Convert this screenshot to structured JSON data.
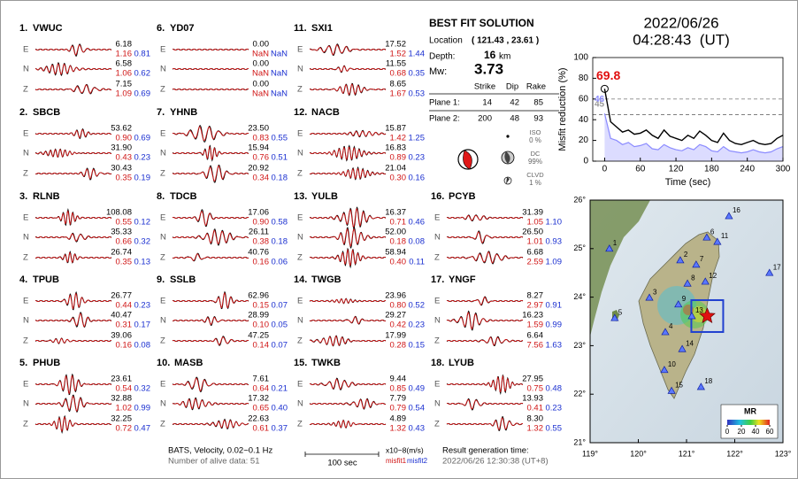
{
  "components": [
    "E",
    "N",
    "Z"
  ],
  "stations": [
    {
      "number": "1.",
      "name": "VWUC",
      "traces": [
        {
          "amp": "6.18",
          "misfit1": "1.16",
          "misfit2": "0.81"
        },
        {
          "amp": "6.58",
          "misfit1": "1.06",
          "misfit2": "0.62"
        },
        {
          "amp": "7.15",
          "misfit1": "1.09",
          "misfit2": "0.69"
        }
      ]
    },
    {
      "number": "2.",
      "name": "SBCB",
      "traces": [
        {
          "amp": "53.62",
          "misfit1": "0.90",
          "misfit2": "0.69"
        },
        {
          "amp": "31.90",
          "misfit1": "0.43",
          "misfit2": "0.23"
        },
        {
          "amp": "30.43",
          "misfit1": "0.35",
          "misfit2": "0.19"
        }
      ]
    },
    {
      "number": "3.",
      "name": "RLNB",
      "traces": [
        {
          "amp": "108.08",
          "misfit1": "0.55",
          "misfit2": "0.12"
        },
        {
          "amp": "35.33",
          "misfit1": "0.66",
          "misfit2": "0.32"
        },
        {
          "amp": "26.74",
          "misfit1": "0.35",
          "misfit2": "0.13"
        }
      ]
    },
    {
      "number": "4.",
      "name": "TPUB",
      "traces": [
        {
          "amp": "26.77",
          "misfit1": "0.44",
          "misfit2": "0.23"
        },
        {
          "amp": "40.47",
          "misfit1": "0.31",
          "misfit2": "0.17"
        },
        {
          "amp": "39.06",
          "misfit1": "0.16",
          "misfit2": "0.08"
        }
      ]
    },
    {
      "number": "5.",
      "name": "PHUB",
      "traces": [
        {
          "amp": "23.61",
          "misfit1": "0.54",
          "misfit2": "0.32"
        },
        {
          "amp": "32.88",
          "misfit1": "1.02",
          "misfit2": "0.99"
        },
        {
          "amp": "32.25",
          "misfit1": "0.72",
          "misfit2": "0.47"
        }
      ]
    },
    {
      "number": "6.",
      "name": "YD07",
      "traces": [
        {
          "amp": "0.00",
          "misfit1": "NaN",
          "misfit2": "NaN"
        },
        {
          "amp": "0.00",
          "misfit1": "NaN",
          "misfit2": "NaN"
        },
        {
          "amp": "0.00",
          "misfit1": "NaN",
          "misfit2": "NaN"
        }
      ]
    },
    {
      "number": "7.",
      "name": "YHNB",
      "traces": [
        {
          "amp": "23.50",
          "misfit1": "0.83",
          "misfit2": "0.55"
        },
        {
          "amp": "15.94",
          "misfit1": "0.76",
          "misfit2": "0.51"
        },
        {
          "amp": "20.92",
          "misfit1": "0.34",
          "misfit2": "0.18"
        }
      ]
    },
    {
      "number": "8.",
      "name": "TDCB",
      "traces": [
        {
          "amp": "17.06",
          "misfit1": "0.90",
          "misfit2": "0.58"
        },
        {
          "amp": "26.11",
          "misfit1": "0.38",
          "misfit2": "0.18"
        },
        {
          "amp": "40.76",
          "misfit1": "0.16",
          "misfit2": "0.06"
        }
      ]
    },
    {
      "number": "9.",
      "name": "SSLB",
      "traces": [
        {
          "amp": "62.96",
          "misfit1": "0.15",
          "misfit2": "0.07"
        },
        {
          "amp": "28.99",
          "misfit1": "0.10",
          "misfit2": "0.05"
        },
        {
          "amp": "47.25",
          "misfit1": "0.14",
          "misfit2": "0.07"
        }
      ]
    },
    {
      "number": "10.",
      "name": "MASB",
      "traces": [
        {
          "amp": "7.61",
          "misfit1": "0.64",
          "misfit2": "0.21"
        },
        {
          "amp": "17.32",
          "misfit1": "0.65",
          "misfit2": "0.40"
        },
        {
          "amp": "22.63",
          "misfit1": "0.61",
          "misfit2": "0.37"
        }
      ]
    },
    {
      "number": "11.",
      "name": "SXI1",
      "traces": [
        {
          "amp": "17.52",
          "misfit1": "1.52",
          "misfit2": "1.44"
        },
        {
          "amp": "11.55",
          "misfit1": "0.68",
          "misfit2": "0.35"
        },
        {
          "amp": "8.65",
          "misfit1": "1.67",
          "misfit2": "0.53"
        }
      ]
    },
    {
      "number": "12.",
      "name": "NACB",
      "traces": [
        {
          "amp": "15.87",
          "misfit1": "1.42",
          "misfit2": "1.25"
        },
        {
          "amp": "16.83",
          "misfit1": "0.89",
          "misfit2": "0.23"
        },
        {
          "amp": "21.04",
          "misfit1": "0.30",
          "misfit2": "0.16"
        }
      ]
    },
    {
      "number": "13.",
      "name": "YULB",
      "traces": [
        {
          "amp": "16.37",
          "misfit1": "0.71",
          "misfit2": "0.46"
        },
        {
          "amp": "52.00",
          "misfit1": "0.18",
          "misfit2": "0.08"
        },
        {
          "amp": "58.94",
          "misfit1": "0.40",
          "misfit2": "0.11"
        }
      ]
    },
    {
      "number": "14.",
      "name": "TWGB",
      "traces": [
        {
          "amp": "23.96",
          "misfit1": "0.80",
          "misfit2": "0.52"
        },
        {
          "amp": "29.27",
          "misfit1": "0.42",
          "misfit2": "0.23"
        },
        {
          "amp": "17.99",
          "misfit1": "0.28",
          "misfit2": "0.15"
        }
      ]
    },
    {
      "number": "15.",
      "name": "TWKB",
      "traces": [
        {
          "amp": "9.44",
          "misfit1": "0.85",
          "misfit2": "0.49"
        },
        {
          "amp": "7.79",
          "misfit1": "0.79",
          "misfit2": "0.54"
        },
        {
          "amp": "4.89",
          "misfit1": "1.32",
          "misfit2": "0.43"
        }
      ]
    },
    {
      "number": "16.",
      "name": "PCYB",
      "traces": [
        {
          "amp": "31.39",
          "misfit1": "1.05",
          "misfit2": "1.10"
        },
        {
          "amp": "26.50",
          "misfit1": "1.01",
          "misfit2": "0.93"
        },
        {
          "amp": "6.68",
          "misfit1": "2.59",
          "misfit2": "1.09"
        }
      ]
    },
    {
      "number": "17.",
      "name": "YNGF",
      "traces": [
        {
          "amp": "8.27",
          "misfit1": "2.97",
          "misfit2": "0.91"
        },
        {
          "amp": "16.23",
          "misfit1": "1.59",
          "misfit2": "0.99"
        },
        {
          "amp": "6.64",
          "misfit1": "7.56",
          "misfit2": "1.63"
        }
      ]
    },
    {
      "number": "18.",
      "name": "LYUB",
      "traces": [
        {
          "amp": "27.95",
          "misfit1": "0.75",
          "misfit2": "0.48"
        },
        {
          "amp": "13.93",
          "misfit1": "0.41",
          "misfit2": "0.23"
        },
        {
          "amp": "8.30",
          "misfit1": "1.32",
          "misfit2": "0.55"
        }
      ]
    }
  ],
  "solution": {
    "title": "BEST FIT SOLUTION",
    "location_label": "Location",
    "location": "( 121.43 , 23.61 )",
    "depth_label": "Depth:",
    "depth": "16",
    "depth_unit": "km",
    "mw_label": "Mw:",
    "mw": "3.73",
    "headers": [
      "Strike",
      "Dip",
      "Rake"
    ],
    "planes": [
      {
        "label": "Plane 1:",
        "values": [
          "14",
          "42",
          "85"
        ]
      },
      {
        "label": "Plane 2:",
        "values": [
          "200",
          "48",
          "93"
        ]
      }
    ],
    "components": [
      {
        "label": "ISO",
        "value": "0 %"
      },
      {
        "label": "DC",
        "value": "99%"
      },
      {
        "label": "CLVD",
        "value": "1 %"
      }
    ]
  },
  "origin": {
    "date": "2022/06/26",
    "time": "04:28:43  (UT)"
  },
  "footer": {
    "filter": "BATS, Velocity, 0.02~0.1 Hz",
    "alive": "Number of alive data: 51",
    "scale": "100 sec",
    "units": "x10−8(m/s)",
    "misfit1": "misfit1",
    "misfit2": "misfit2",
    "generated_label": "Result generation time:",
    "generated": "2022/06/26 12:30:38 (UT+8)"
  },
  "chart_data": [
    {
      "type": "line",
      "ylabel": "Misfit reduction (%)",
      "xlabel": "Time (sec)",
      "x": [
        0,
        10,
        20,
        30,
        40,
        50,
        60,
        70,
        80,
        90,
        100,
        110,
        120,
        130,
        140,
        150,
        160,
        170,
        180,
        190,
        200,
        210,
        220,
        230,
        240,
        250,
        260,
        270,
        280,
        290,
        300
      ],
      "xlim": [
        -20,
        300
      ],
      "ylim": [
        0,
        100
      ],
      "xticks": [
        0,
        60,
        120,
        180,
        240,
        300
      ],
      "yticks": [
        0,
        20,
        40,
        60,
        80,
        100
      ],
      "reference_lines": [
        60,
        45
      ],
      "series": [
        {
          "color": "#000000",
          "values": [
            69.8,
            38,
            33,
            28,
            30,
            26,
            27,
            30,
            25,
            22,
            30,
            24,
            22,
            20,
            25,
            22,
            29,
            25,
            20,
            18,
            27,
            20,
            17,
            16,
            18,
            20,
            17,
            16,
            17,
            22,
            25
          ]
        },
        {
          "color": "#8c8cff",
          "values": [
            46,
            22,
            20,
            16,
            18,
            14,
            15,
            17,
            12,
            11,
            16,
            13,
            11,
            10,
            13,
            11,
            16,
            14,
            10,
            9,
            14,
            10,
            9,
            8,
            9,
            11,
            9,
            8,
            9,
            12,
            14
          ]
        }
      ],
      "annotations": [
        "69.8",
        "45",
        "46"
      ]
    },
    {
      "type": "map",
      "xlim": [
        119,
        123
      ],
      "ylim": [
        21,
        26
      ],
      "xticks": [
        {
          "value": 119,
          "label": "119°"
        },
        {
          "value": 120,
          "label": "120°"
        },
        {
          "value": 121,
          "label": "121°"
        },
        {
          "value": 122,
          "label": "122°"
        },
        {
          "value": 123,
          "label": "123°"
        }
      ],
      "yticks": [
        {
          "value": 21,
          "label": "21°"
        },
        {
          "value": 22,
          "label": "22°"
        },
        {
          "value": 23,
          "label": "23°"
        },
        {
          "value": 24,
          "label": "24°"
        },
        {
          "value": 25,
          "label": "25°"
        },
        {
          "value": 26,
          "label": "26°"
        }
      ],
      "labels": [
        "1",
        "2",
        "3",
        "4",
        "5",
        "6",
        "7",
        "8",
        "9",
        "10",
        "11",
        "12",
        "13",
        "14",
        "15",
        "16",
        "17",
        "18"
      ],
      "x": [
        119.4,
        120.87,
        120.23,
        120.56,
        119.51,
        121.42,
        121.2,
        121.02,
        120.83,
        120.54,
        121.64,
        121.39,
        121.11,
        120.91,
        120.69,
        121.88,
        122.72,
        121.3
      ],
      "y": [
        25.0,
        24.76,
        23.99,
        23.28,
        23.57,
        25.23,
        24.67,
        24.28,
        23.85,
        22.5,
        25.14,
        24.32,
        23.61,
        22.93,
        22.07,
        25.67,
        24.5,
        22.15
      ],
      "epicenter": [
        121.43,
        23.61
      ],
      "colorbar": {
        "title": "MR",
        "ticks": [
          0,
          20,
          40,
          60
        ]
      }
    }
  ]
}
